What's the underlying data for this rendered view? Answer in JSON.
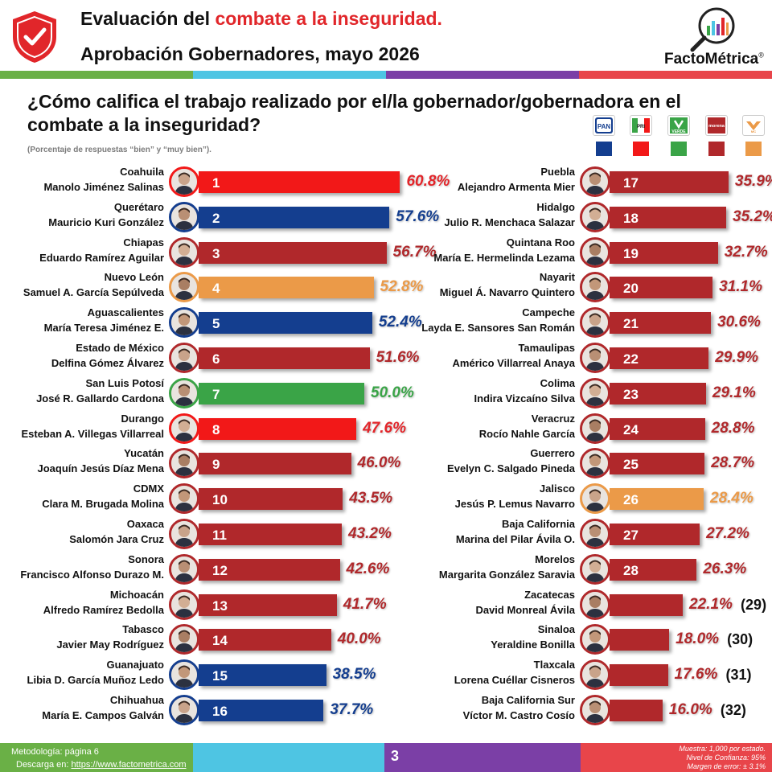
{
  "header": {
    "title_prefix": "Evaluación del ",
    "title_accent": "combate a la inseguridad.",
    "subtitle": "Aprobación Gobernadores, mayo 2026",
    "logo_text": "FactoMétrica",
    "logo_mark": "®",
    "shield_icon": "shield-check-icon",
    "stripe_colors": [
      "#6ab046",
      "#4ec5e3",
      "#7b3fa6",
      "#e8454a"
    ]
  },
  "question": "¿Cómo califica el trabajo realizado por el/la gobernador/gobernadora en el combate a la inseguridad?",
  "note": "(Porcentaje de respuestas “bien” y “muy bien”).",
  "legend": {
    "parties": [
      {
        "label": "PAN",
        "color": "#143e8f"
      },
      {
        "label": "PRI",
        "color": "#f21818"
      },
      {
        "label": "VERDE",
        "color": "#3aa447"
      },
      {
        "label": "morena",
        "color": "#b0282b"
      },
      {
        "label": "MC",
        "color": "#eb9a48"
      }
    ]
  },
  "chart_data": {
    "type": "bar",
    "title": "¿Cómo califica el trabajo realizado por el/la gobernador/gobernadora en el combate a la inseguridad?",
    "unit": "%",
    "xlim": [
      0,
      100
    ],
    "items": [
      {
        "rank": "1",
        "state": "Coahuila",
        "governor": "Manolo Jiménez Salinas",
        "value": 60.8,
        "label": "60.8%",
        "party": "PRI",
        "color": "#f21818",
        "label_color": "#e3252a"
      },
      {
        "rank": "2",
        "state": "Querétaro",
        "governor": "Mauricio Kuri González",
        "value": 57.6,
        "label": "57.6%",
        "party": "PAN",
        "color": "#143e8f",
        "label_color": "#143e8f"
      },
      {
        "rank": "3",
        "state": "Chiapas",
        "governor": "Eduardo Ramírez Aguilar",
        "value": 56.7,
        "label": "56.7%",
        "party": "morena",
        "color": "#b0282b",
        "label_color": "#b0282b"
      },
      {
        "rank": "4",
        "state": "Nuevo León",
        "governor": "Samuel A. García Sepúlveda",
        "value": 52.8,
        "label": "52.8%",
        "party": "MC",
        "color": "#eb9a48",
        "label_color": "#eb9a48"
      },
      {
        "rank": "5",
        "state": "Aguascalientes",
        "governor": "María Teresa Jiménez E.",
        "value": 52.4,
        "label": "52.4%",
        "party": "PAN",
        "color": "#143e8f",
        "label_color": "#143e8f"
      },
      {
        "rank": "6",
        "state": "Estado de México",
        "governor": "Delfina Gómez Álvarez",
        "value": 51.6,
        "label": "51.6%",
        "party": "morena",
        "color": "#b0282b",
        "label_color": "#b0282b"
      },
      {
        "rank": "7",
        "state": "San Luis Potosí",
        "governor": "José R. Gallardo Cardona",
        "value": 50.0,
        "label": "50.0%",
        "party": "VERDE",
        "color": "#3aa447",
        "label_color": "#3aa447"
      },
      {
        "rank": "8",
        "state": "Durango",
        "governor": "Esteban A. Villegas Villarreal",
        "value": 47.6,
        "label": "47.6%",
        "party": "PRI",
        "color": "#f21818",
        "label_color": "#e3252a"
      },
      {
        "rank": "9",
        "state": "Yucatán",
        "governor": "Joaquín Jesús Díaz Mena",
        "value": 46.0,
        "label": "46.0%",
        "party": "morena",
        "color": "#b0282b",
        "label_color": "#b0282b"
      },
      {
        "rank": "10",
        "state": "CDMX",
        "governor": "Clara M. Brugada Molina",
        "value": 43.5,
        "label": "43.5%",
        "party": "morena",
        "color": "#b0282b",
        "label_color": "#b0282b"
      },
      {
        "rank": "11",
        "state": "Oaxaca",
        "governor": "Salomón Jara Cruz",
        "value": 43.2,
        "label": "43.2%",
        "party": "morena",
        "color": "#b0282b",
        "label_color": "#b0282b"
      },
      {
        "rank": "12",
        "state": "Sonora",
        "governor": "Francisco Alfonso Durazo M.",
        "value": 42.6,
        "label": "42.6%",
        "party": "morena",
        "color": "#b0282b",
        "label_color": "#b0282b"
      },
      {
        "rank": "13",
        "state": "Michoacán",
        "governor": "Alfredo Ramírez Bedolla",
        "value": 41.7,
        "label": "41.7%",
        "party": "morena",
        "color": "#b0282b",
        "label_color": "#b0282b"
      },
      {
        "rank": "14",
        "state": "Tabasco",
        "governor": "Javier May Rodríguez",
        "value": 40.0,
        "label": "40.0%",
        "party": "morena",
        "color": "#b0282b",
        "label_color": "#b0282b"
      },
      {
        "rank": "15",
        "state": "Guanajuato",
        "governor": "Libia D. García Muñoz Ledo",
        "value": 38.5,
        "label": "38.5%",
        "party": "PAN",
        "color": "#143e8f",
        "label_color": "#143e8f"
      },
      {
        "rank": "16",
        "state": "Chihuahua",
        "governor": "María E. Campos Galván",
        "value": 37.7,
        "label": "37.7%",
        "party": "PAN",
        "color": "#143e8f",
        "label_color": "#143e8f"
      },
      {
        "rank": "17",
        "state": "Puebla",
        "governor": "Alejandro Armenta Mier",
        "value": 35.9,
        "label": "35.9%",
        "party": "morena",
        "color": "#b0282b",
        "label_color": "#b0282b"
      },
      {
        "rank": "18",
        "state": "Hidalgo",
        "governor": "Julio R. Menchaca Salazar",
        "value": 35.2,
        "label": "35.2%",
        "party": "morena",
        "color": "#b0282b",
        "label_color": "#b0282b"
      },
      {
        "rank": "19",
        "state": "Quintana Roo",
        "governor": "María E. Hermelinda Lezama",
        "value": 32.7,
        "label": "32.7%",
        "party": "morena",
        "color": "#b0282b",
        "label_color": "#b0282b"
      },
      {
        "rank": "20",
        "state": "Nayarit",
        "governor": "Miguel Á. Navarro Quintero",
        "value": 31.1,
        "label": "31.1%",
        "party": "morena",
        "color": "#b0282b",
        "label_color": "#b0282b"
      },
      {
        "rank": "21",
        "state": "Campeche",
        "governor": "Layda E. Sansores San Román",
        "value": 30.6,
        "label": "30.6%",
        "party": "morena",
        "color": "#b0282b",
        "label_color": "#b0282b"
      },
      {
        "rank": "22",
        "state": "Tamaulipas",
        "governor": "Américo Villarreal Anaya",
        "value": 29.9,
        "label": "29.9%",
        "party": "morena",
        "color": "#b0282b",
        "label_color": "#b0282b"
      },
      {
        "rank": "23",
        "state": "Colima",
        "governor": "Indira Vizcaíno Silva",
        "value": 29.1,
        "label": "29.1%",
        "party": "morena",
        "color": "#b0282b",
        "label_color": "#b0282b"
      },
      {
        "rank": "24",
        "state": "Veracruz",
        "governor": "Rocío Nahle García",
        "value": 28.8,
        "label": "28.8%",
        "party": "morena",
        "color": "#b0282b",
        "label_color": "#b0282b"
      },
      {
        "rank": "25",
        "state": "Guerrero",
        "governor": "Evelyn C. Salgado Pineda",
        "value": 28.7,
        "label": "28.7%",
        "party": "morena",
        "color": "#b0282b",
        "label_color": "#b0282b"
      },
      {
        "rank": "26",
        "state": "Jalisco",
        "governor": "Jesús P. Lemus Navarro",
        "value": 28.4,
        "label": "28.4%",
        "party": "MC",
        "color": "#eb9a48",
        "label_color": "#eb9a48"
      },
      {
        "rank": "27",
        "state": "Baja California",
        "governor": "Marina del Pilar Ávila O.",
        "value": 27.2,
        "label": "27.2%",
        "party": "morena",
        "color": "#b0282b",
        "label_color": "#b0282b"
      },
      {
        "rank": "28",
        "state": "Morelos",
        "governor": "Margarita González Saravia",
        "value": 26.3,
        "label": "26.3%",
        "party": "morena",
        "color": "#b0282b",
        "label_color": "#b0282b"
      },
      {
        "rank": "",
        "state": "Zacatecas",
        "governor": "David Monreal Ávila",
        "value": 22.1,
        "label": "22.1%",
        "extra": "(29)",
        "party": "morena",
        "color": "#b0282b",
        "label_color": "#b0282b"
      },
      {
        "rank": "",
        "state": "Sinaloa",
        "governor": "Yeraldine Bonilla",
        "value": 18.0,
        "label": "18.0%",
        "extra": "(30)",
        "party": "morena",
        "color": "#b0282b",
        "label_color": "#b0282b"
      },
      {
        "rank": "",
        "state": "Tlaxcala",
        "governor": "Lorena Cuéllar Cisneros",
        "value": 17.6,
        "label": "17.6%",
        "extra": "(31)",
        "party": "morena",
        "color": "#b0282b",
        "label_color": "#b0282b"
      },
      {
        "rank": "",
        "state": "Baja California Sur",
        "governor": "Víctor M. Castro Cosío",
        "value": 16.0,
        "label": "16.0%",
        "extra": "(32)",
        "party": "morena",
        "color": "#b0282b",
        "label_color": "#b0282b"
      }
    ]
  },
  "footer": {
    "methodology": "Metodología: página 6",
    "download_prefix": "Descarga en: ",
    "download_link": "https://www.factometrica.com",
    "page_number": "3",
    "sample_line1": "Muestra:  1,000 por estado.",
    "sample_line2": "Nivel de Confianza: 95%",
    "sample_line3": "Margen de error: ± 3.1%",
    "colors": [
      "#6ab046",
      "#4ec5e3",
      "#7b3fa6",
      "#e8454a"
    ]
  }
}
